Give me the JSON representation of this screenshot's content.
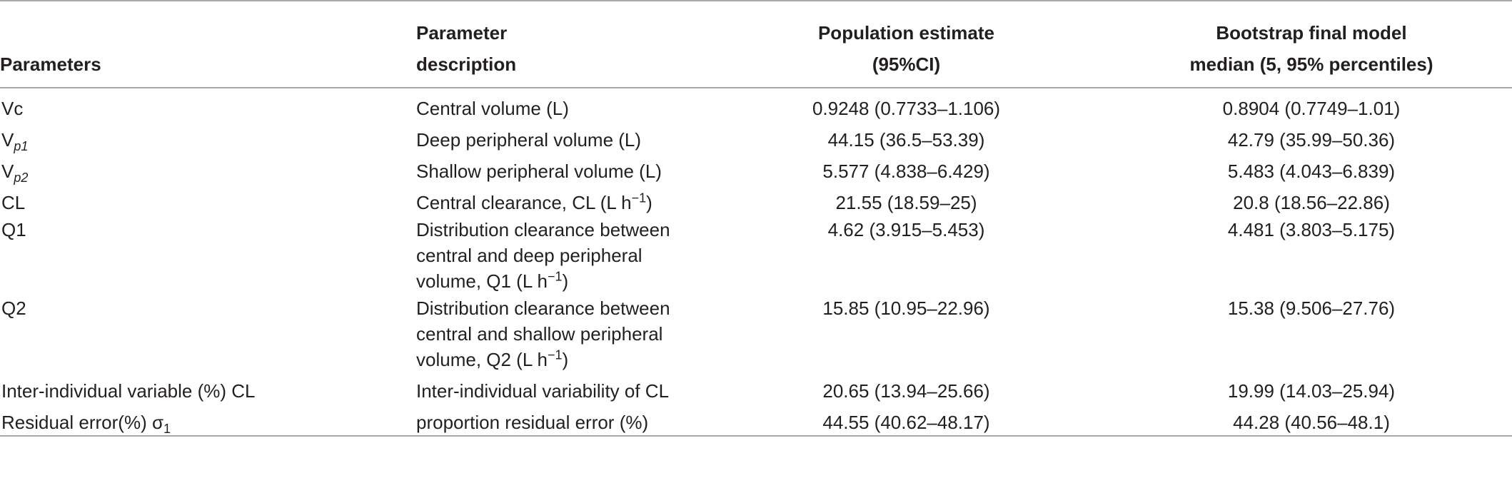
{
  "table": {
    "headers": {
      "parameters": "Parameters",
      "description_line1": "Parameter",
      "description_line2": "description",
      "population_line1": "Population estimate",
      "population_line2": "(95%CI)",
      "bootstrap_line1": "Bootstrap final model",
      "bootstrap_line2": "median (5, 95% percentiles)"
    },
    "rows": [
      {
        "param": "Vc",
        "desc": [
          "Central volume (L)"
        ],
        "pop": "0.9248 (0.7733–1.106)",
        "boot": "0.8904 (0.7749–1.01)"
      },
      {
        "param_base": "V",
        "param_sub": "p1",
        "desc": [
          "Deep peripheral volume (L)"
        ],
        "pop": "44.15 (36.5–53.39)",
        "boot": "42.79 (35.99–50.36)"
      },
      {
        "param_base": "V",
        "param_sub": "p2",
        "desc": [
          "Shallow peripheral volume (L)"
        ],
        "pop": "5.577 (4.838–6.429)",
        "boot": "5.483 (4.043–6.839)"
      },
      {
        "param": "CL",
        "desc_text": "Central clearance, CL (L h",
        "desc_sup": "−1",
        "desc_end": ")",
        "pop": "21.55 (18.59–25)",
        "boot": "20.8 (18.56–22.86)"
      },
      {
        "param": "Q1",
        "desc": [
          "Distribution clearance between",
          "central and deep peripheral"
        ],
        "desc_line3_text": "volume, Q1 (L h",
        "desc_line3_sup": "−1",
        "desc_line3_end": ")",
        "pop": "4.62 (3.915–5.453)",
        "boot": "4.481 (3.803–5.175)"
      },
      {
        "param": "Q2",
        "desc": [
          "Distribution clearance between",
          "central and shallow peripheral"
        ],
        "desc_line3_text": "volume, Q2 (L h",
        "desc_line3_sup": "−1",
        "desc_line3_end": ")",
        "pop": "15.85 (10.95–22.96)",
        "boot": "15.38 (9.506–27.76)"
      },
      {
        "param": "Inter-individual variable (%) CL",
        "desc": [
          "Inter-individual variability of CL"
        ],
        "pop": "20.65 (13.94–25.66)",
        "boot": "19.99 (14.03–25.94)"
      },
      {
        "param_text": "Residual error(%) σ",
        "param_sub": "1",
        "desc": [
          "proportion residual error (%)"
        ],
        "pop": "44.55 (40.62–48.17)",
        "boot": "44.28 (40.56–48.1)"
      }
    ]
  }
}
